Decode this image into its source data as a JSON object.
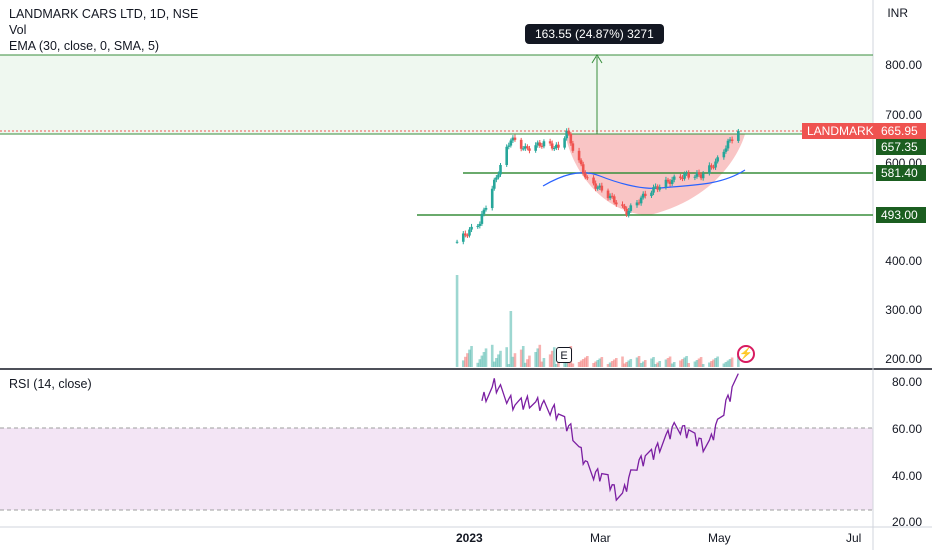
{
  "header": {
    "symbol_line": "LANDMARK CARS LTD, 1D, NSE",
    "vol_label": "Vol",
    "ema_label": "EMA (30, close, 0, SMA, 5)",
    "currency": "INR"
  },
  "rsi_panel": {
    "label": "RSI (14, close)"
  },
  "measure_label": "163.55 (24.87%) 3271",
  "earnings_badge": "E",
  "flash_icon": "lightning-icon",
  "price_tags": {
    "symbol_tag": "LANDMARK",
    "last_price": "665.95",
    "resistance": "657.35",
    "mid_support": "581.40",
    "support": "493.00"
  },
  "price_axis": [
    "800.00",
    "700.00",
    "600.00",
    "400.00",
    "300.00",
    "200.00"
  ],
  "rsi_axis": [
    "80.00",
    "60.00",
    "40.00",
    "20.00"
  ],
  "time_axis": [
    "2023",
    "Mar",
    "May",
    "Jul"
  ],
  "colors": {
    "up": "#26a69a",
    "down": "#ef5350",
    "line_green": "#388e3c",
    "ema": "#2962ff",
    "rsi_line": "#7b1fa2",
    "rsi_band": "#f3e5f5",
    "target_zone": "#e8f5e9",
    "cup_fill": "#f8bbbb"
  },
  "chart_data": {
    "type": "candlestick",
    "price_range": [
      190,
      905
    ],
    "rsi_range": [
      20,
      85
    ],
    "levels": {
      "target": 820.5,
      "resistance": 657.35,
      "mid_support": 581.4,
      "support": 493.0,
      "last": 665.95
    },
    "rsi_bands": [
      30,
      70
    ],
    "price_path": [
      [
        "2022-12-23",
        440
      ],
      [
        "2023-01-03",
        480
      ],
      [
        "2023-01-10",
        560
      ],
      [
        "2023-01-18",
        650
      ],
      [
        "2023-01-25",
        628
      ],
      [
        "2023-02-03",
        640
      ],
      [
        "2023-02-10",
        630
      ],
      [
        "2023-02-14",
        665
      ],
      [
        "2023-02-17",
        630
      ],
      [
        "2023-02-24",
        565
      ],
      [
        "2023-03-03",
        545
      ],
      [
        "2023-03-10",
        520
      ],
      [
        "2023-03-15",
        500
      ],
      [
        "2023-03-20",
        520
      ],
      [
        "2023-03-25",
        540
      ],
      [
        "2023-04-03",
        560
      ],
      [
        "2023-04-12",
        575
      ],
      [
        "2023-04-20",
        575
      ],
      [
        "2023-04-27",
        600
      ],
      [
        "2023-05-03",
        640
      ],
      [
        "2023-05-08",
        666
      ]
    ],
    "rsi_path": [
      [
        "2023-01-04",
        72
      ],
      [
        "2023-01-10",
        79
      ],
      [
        "2023-01-20",
        70
      ],
      [
        "2023-01-28",
        72
      ],
      [
        "2023-02-08",
        68
      ],
      [
        "2023-02-16",
        60
      ],
      [
        "2023-02-25",
        42
      ],
      [
        "2023-03-05",
        40
      ],
      [
        "2023-03-12",
        30
      ],
      [
        "2023-03-19",
        45
      ],
      [
        "2023-03-28",
        50
      ],
      [
        "2023-04-08",
        62
      ],
      [
        "2023-04-15",
        58
      ],
      [
        "2023-04-23",
        52
      ],
      [
        "2023-05-02",
        71
      ],
      [
        "2023-05-08",
        82
      ]
    ]
  }
}
